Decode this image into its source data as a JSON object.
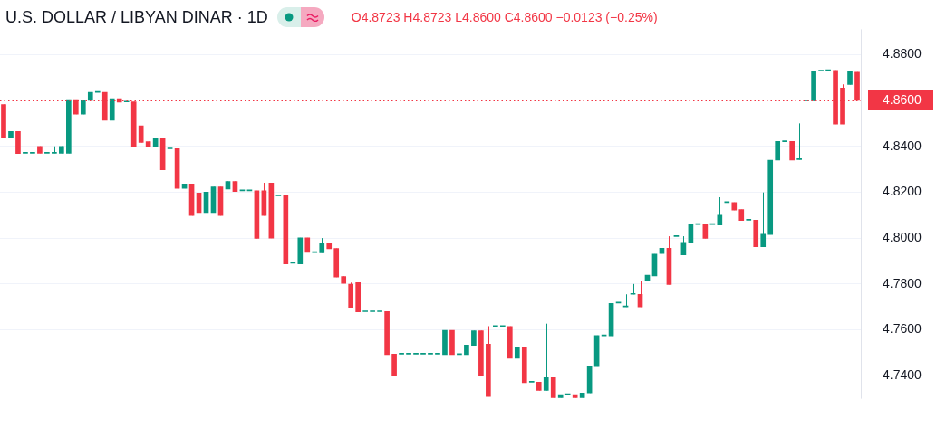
{
  "chart_data": {
    "type": "candlestick",
    "title": "U.S. DOLLAR / LIBYAN DINAR · 1D",
    "annotations": [
      "O4.8723 H4.8723 L4.8600 C4.8600 −0.0123 (−0.25%)"
    ],
    "categories": [
      null,
      null,
      null,
      null,
      null,
      null,
      null,
      null,
      null,
      null,
      null,
      null,
      null,
      null,
      null,
      null,
      null,
      null,
      null,
      null,
      null,
      null,
      null,
      null,
      null,
      null,
      null,
      null,
      null,
      null,
      null,
      null,
      null,
      null,
      null,
      null,
      null,
      null,
      null,
      null,
      null,
      null,
      null,
      null,
      null,
      null,
      null,
      null,
      null,
      null,
      null,
      null,
      null,
      null,
      null,
      null,
      null,
      null,
      null,
      null,
      null,
      null,
      null,
      null,
      null,
      null,
      null,
      null,
      null,
      null,
      null,
      null,
      null,
      null,
      null,
      null,
      null,
      null,
      null,
      null,
      null,
      null,
      null,
      null,
      null,
      null,
      null,
      null,
      null,
      null,
      null,
      null,
      null,
      null,
      null,
      null,
      null,
      null,
      null,
      null,
      null,
      null,
      null,
      null,
      null,
      null,
      null,
      null,
      null,
      null,
      null,
      null,
      null,
      null,
      null,
      null,
      null,
      null,
      null
    ],
    "ohlc": [
      [
        4.8582,
        4.8582,
        4.8437,
        4.8437
      ],
      [
        4.8437,
        4.8465,
        4.8437,
        4.8465
      ],
      [
        4.8465,
        4.8465,
        4.8369,
        4.8369
      ],
      [
        4.837,
        4.837,
        4.837,
        4.837
      ],
      [
        4.837,
        4.837,
        4.837,
        4.837
      ],
      [
        4.84,
        4.84,
        4.837,
        4.837
      ],
      [
        4.837,
        4.837,
        4.837,
        4.837
      ],
      [
        4.837,
        4.84,
        4.837,
        4.837
      ],
      [
        4.837,
        4.84,
        4.837,
        4.84
      ],
      [
        4.837,
        4.8604,
        4.837,
        4.8604
      ],
      [
        4.8604,
        4.8604,
        4.854,
        4.854
      ],
      [
        4.854,
        4.86,
        4.854,
        4.86
      ],
      [
        4.86,
        4.8635,
        4.86,
        4.8635
      ],
      [
        4.8635,
        4.8635,
        4.8635,
        4.8635
      ],
      [
        4.8635,
        4.8635,
        4.8514,
        4.8514
      ],
      [
        4.8514,
        4.8608,
        4.8514,
        4.8608
      ],
      [
        4.8608,
        4.8608,
        4.8592,
        4.8592
      ],
      [
        4.8593,
        4.8593,
        4.8593,
        4.8593
      ],
      [
        4.8594,
        4.8594,
        4.8398,
        4.8398
      ],
      [
        4.8489,
        4.8489,
        4.8417,
        4.8417
      ],
      [
        4.842,
        4.842,
        4.84,
        4.84
      ],
      [
        4.84,
        4.8434,
        4.84,
        4.8434
      ],
      [
        4.8434,
        4.8434,
        4.8298,
        4.8298
      ],
      [
        4.8389,
        4.8389,
        4.8389,
        4.8389
      ],
      [
        4.839,
        4.839,
        4.8217,
        4.8217
      ],
      [
        4.8217,
        4.8236,
        4.8217,
        4.8236
      ],
      [
        4.8236,
        4.8236,
        4.8098,
        4.8098
      ],
      [
        4.8196,
        4.8196,
        4.8111,
        4.8111
      ],
      [
        4.8111,
        4.82,
        4.8111,
        4.82
      ],
      [
        4.8111,
        4.8223,
        4.8111,
        4.8223
      ],
      [
        4.8223,
        4.8223,
        4.8098,
        4.8098
      ],
      [
        4.8214,
        4.8247,
        4.8214,
        4.8247
      ],
      [
        4.8247,
        4.8247,
        4.8203,
        4.8203
      ],
      [
        4.8206,
        4.8206,
        4.8206,
        4.8206
      ],
      [
        4.8206,
        4.8206,
        4.8206,
        4.8206
      ],
      [
        4.8206,
        4.8206,
        4.7999,
        4.7999
      ],
      [
        4.8206,
        4.8241,
        4.8098,
        4.8098
      ],
      [
        4.824,
        4.824,
        4.8,
        4.8
      ],
      [
        4.8184,
        4.8184,
        4.8184,
        4.8184
      ],
      [
        4.8185,
        4.8185,
        4.7887,
        4.7887
      ],
      [
        4.789,
        4.789,
        4.789,
        4.789
      ],
      [
        4.7887,
        4.8001,
        4.7887,
        4.8001
      ],
      [
        4.8001,
        4.8001,
        4.7938,
        4.7938
      ],
      [
        4.7937,
        4.7937,
        4.7937,
        4.7937
      ],
      [
        4.7936,
        4.8,
        4.7936,
        4.7979
      ],
      [
        4.7979,
        4.7979,
        4.7953,
        4.7953
      ],
      [
        4.7955,
        4.7955,
        4.783,
        4.783
      ],
      [
        4.7833,
        4.7833,
        4.7803,
        4.7803
      ],
      [
        4.7799,
        4.7806,
        4.7698,
        4.7698
      ],
      [
        4.7806,
        4.7806,
        4.7678,
        4.7678
      ],
      [
        4.7679,
        4.7679,
        4.7679,
        4.7679
      ],
      [
        4.7679,
        4.7679,
        4.7679,
        4.7679
      ],
      [
        4.7679,
        4.7679,
        4.7679,
        4.7679
      ],
      [
        4.768,
        4.768,
        4.7492,
        4.7492
      ],
      [
        4.7494,
        4.7494,
        4.74,
        4.74
      ],
      [
        4.7494,
        4.7494,
        4.7494,
        4.7494
      ],
      [
        4.7494,
        4.7494,
        4.7494,
        4.7494
      ],
      [
        4.7494,
        4.7494,
        4.7494,
        4.7494
      ],
      [
        4.7494,
        4.7494,
        4.7494,
        4.7494
      ],
      [
        4.7494,
        4.7494,
        4.7494,
        4.7494
      ],
      [
        4.7494,
        4.7494,
        4.7494,
        4.7494
      ],
      [
        4.7492,
        4.7598,
        4.7492,
        4.7598
      ],
      [
        4.7598,
        4.7598,
        4.7492,
        4.7492
      ],
      [
        4.7492,
        4.7492,
        4.7492,
        4.7492
      ],
      [
        4.7492,
        4.7534,
        4.7492,
        4.7534
      ],
      [
        4.7532,
        4.7596,
        4.7532,
        4.7596
      ],
      [
        4.7596,
        4.7596,
        4.74,
        4.74
      ],
      [
        4.7538,
        4.7616,
        4.731,
        4.731
      ],
      [
        4.7615,
        4.7615,
        4.7615,
        4.7615
      ],
      [
        4.7615,
        4.7615,
        4.7615,
        4.7615
      ],
      [
        4.7615,
        4.7615,
        4.7476,
        4.7476
      ],
      [
        4.7476,
        4.7524,
        4.7476,
        4.7524
      ],
      [
        4.7524,
        4.7524,
        4.737,
        4.737
      ],
      [
        4.7372,
        4.7372,
        4.7372,
        4.7372
      ],
      [
        4.7372,
        4.7372,
        4.7336,
        4.7336
      ],
      [
        4.7336,
        4.7627,
        4.7336,
        4.7392
      ],
      [
        4.7392,
        4.7392,
        4.7305,
        4.7305
      ],
      [
        4.7305,
        4.7318,
        4.7305,
        4.7318
      ],
      [
        4.7318,
        4.7318,
        4.7318,
        4.7318
      ],
      [
        4.7318,
        4.7318,
        4.7305,
        4.7305
      ],
      [
        4.7305,
        4.7325,
        4.7305,
        4.7325
      ],
      [
        4.7325,
        4.744,
        4.7325,
        4.744
      ],
      [
        4.744,
        4.7575,
        4.744,
        4.7575
      ],
      [
        4.7574,
        4.7574,
        4.7574,
        4.7574
      ],
      [
        4.7574,
        4.7715,
        4.7574,
        4.7715
      ],
      [
        4.7717,
        4.7717,
        4.7717,
        4.7717
      ],
      [
        4.77,
        4.7755,
        4.77,
        4.7702
      ],
      [
        4.7755,
        4.78,
        4.7755,
        4.7755
      ],
      [
        4.7755,
        4.7814,
        4.77,
        4.77
      ],
      [
        4.7812,
        4.7838,
        4.7812,
        4.7838
      ],
      [
        4.7835,
        4.793,
        4.7835,
        4.793
      ],
      [
        4.7933,
        4.7956,
        4.7933,
        4.7956
      ],
      [
        4.7956,
        4.8008,
        4.7798,
        4.7798
      ],
      [
        4.8007,
        4.8007,
        4.8007,
        4.8007
      ],
      [
        4.7927,
        4.8008,
        4.7927,
        4.7981
      ],
      [
        4.7979,
        4.8059,
        4.7979,
        4.8059
      ],
      [
        4.8059,
        4.8059,
        4.8059,
        4.8059
      ],
      [
        4.8059,
        4.8059,
        4.7999,
        4.7999
      ],
      [
        4.8059,
        4.8059,
        4.8059,
        4.8059
      ],
      [
        4.8057,
        4.8178,
        4.8057,
        4.81
      ],
      [
        4.8155,
        4.8155,
        4.8155,
        4.8155
      ],
      [
        4.8155,
        4.8155,
        4.8122,
        4.8122
      ],
      [
        4.8124,
        4.8124,
        4.8077,
        4.8077
      ],
      [
        4.8078,
        4.8078,
        4.8078,
        4.8078
      ],
      [
        4.8078,
        4.8078,
        4.7962,
        4.7962
      ],
      [
        4.7962,
        4.8199,
        4.7962,
        4.8017
      ],
      [
        4.8016,
        4.8339,
        4.8016,
        4.8339
      ],
      [
        4.834,
        4.8421,
        4.834,
        4.8421
      ],
      [
        4.842,
        4.842,
        4.842,
        4.842
      ],
      [
        4.8421,
        4.8421,
        4.834,
        4.834
      ],
      [
        4.8342,
        4.85,
        4.8342,
        4.8342
      ],
      [
        4.8598,
        4.8598,
        4.8598,
        4.8598
      ],
      [
        4.8598,
        4.8726,
        4.8598,
        4.8726
      ],
      [
        4.8728,
        4.8728,
        4.8728,
        4.8728
      ],
      [
        4.873,
        4.873,
        4.873,
        4.873
      ],
      [
        4.8731,
        4.8731,
        4.8497,
        4.8497
      ],
      [
        4.8654,
        4.867,
        4.8497,
        4.8497
      ],
      [
        4.8669,
        4.8726,
        4.8669,
        4.8726
      ],
      [
        4.8723,
        4.8723,
        4.86,
        4.86
      ]
    ],
    "colors": [
      "#f23645",
      "#089981",
      "#f23645",
      "#089981",
      "#089981",
      "#f23645",
      "#089981",
      "#089981",
      "#089981",
      "#089981",
      "#f23645",
      "#089981",
      "#089981",
      "#089981",
      "#f23645",
      "#089981",
      "#f23645",
      "#089981",
      "#f23645",
      "#f23645",
      "#f23645",
      "#089981",
      "#f23645",
      "#089981",
      "#f23645",
      "#089981",
      "#f23645",
      "#f23645",
      "#089981",
      "#089981",
      "#f23645",
      "#089981",
      "#f23645",
      "#089981",
      "#089981",
      "#f23645",
      "#f23645",
      "#f23645",
      "#089981",
      "#f23645",
      "#089981",
      "#089981",
      "#f23645",
      "#089981",
      "#089981",
      "#f23645",
      "#f23645",
      "#f23645",
      "#f23645",
      "#f23645",
      "#089981",
      "#089981",
      "#089981",
      "#f23645",
      "#f23645",
      "#089981",
      "#089981",
      "#089981",
      "#089981",
      "#089981",
      "#089981",
      "#089981",
      "#f23645",
      "#089981",
      "#089981",
      "#089981",
      "#f23645",
      "#f23645",
      "#089981",
      "#089981",
      "#f23645",
      "#089981",
      "#f23645",
      "#089981",
      "#f23645",
      "#089981",
      "#f23645",
      "#089981",
      "#089981",
      "#f23645",
      "#089981",
      "#089981",
      "#089981",
      "#089981",
      "#089981",
      "#089981",
      "#089981",
      "#089981",
      "#f23645",
      "#089981",
      "#089981",
      "#089981",
      "#f23645",
      "#089981",
      "#089981",
      "#089981",
      "#089981",
      "#f23645",
      "#089981",
      "#089981",
      "#089981",
      "#f23645",
      "#f23645",
      "#089981",
      "#f23645",
      "#089981",
      "#089981",
      "#089981",
      "#089981",
      "#f23645",
      "#089981",
      "#089981",
      "#089981",
      "#089981",
      "#089981",
      "#f23645",
      "#f23645",
      "#089981",
      "#f23645"
    ],
    "ylim": [
      4.73,
      4.891
    ],
    "yticks": [
      {
        "value": 4.74,
        "label": "4.7400"
      },
      {
        "value": 4.76,
        "label": "4.7600"
      },
      {
        "value": 4.78,
        "label": "4.7800"
      },
      {
        "value": 4.8,
        "label": "4.8000"
      },
      {
        "value": 4.82,
        "label": "4.8200"
      },
      {
        "value": 4.84,
        "label": "4.8400"
      },
      {
        "value": 4.86,
        "label": "4.8600"
      },
      {
        "value": 4.88,
        "label": "4.8800"
      }
    ],
    "ref_lines": [
      {
        "axis": "y",
        "value": 4.86,
        "label": null,
        "color": "#f23645",
        "line_style": "dotted"
      },
      {
        "axis": "y",
        "value": 4.7318,
        "label": null,
        "color": "#8fd4c4",
        "line_style": "dashed"
      }
    ],
    "grid": "y"
  }
}
